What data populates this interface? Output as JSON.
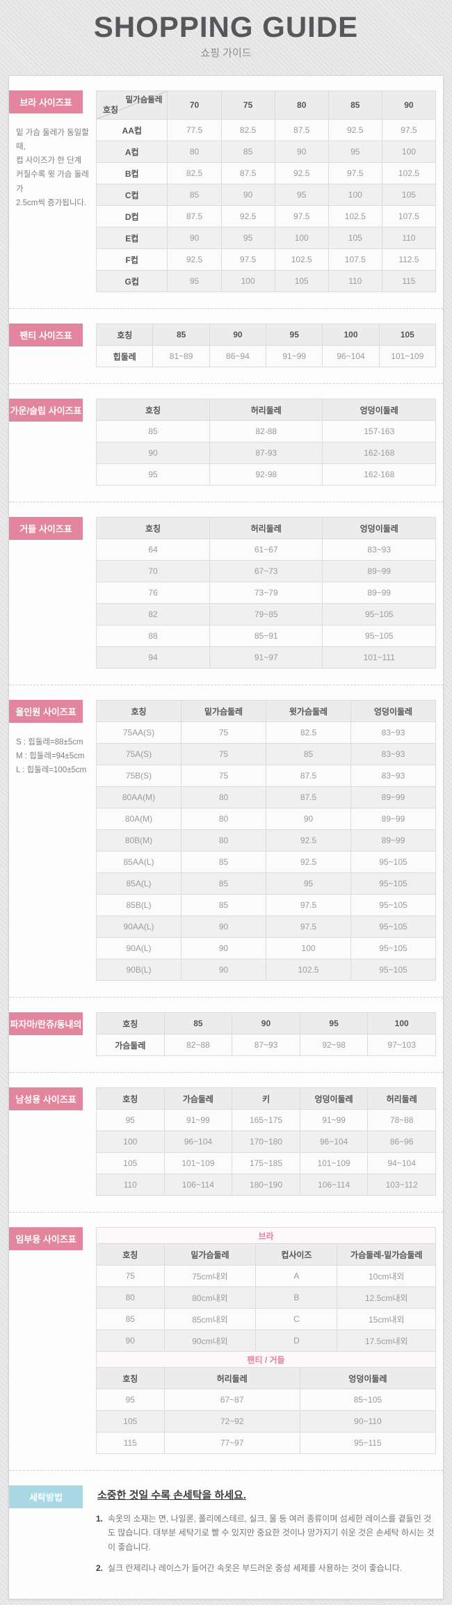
{
  "colors": {
    "accent_pink": "#e2859d",
    "accent_blue": "#a7d8e4",
    "banner_pink_text": "#e0849c"
  },
  "header": {
    "title": "SHOPPING GUIDE",
    "subtitle": "쇼핑 가이드"
  },
  "sections": {
    "bra": {
      "title": "브라 사이즈표",
      "note_lines": [
        "밑 가슴 둘레가 동일할 때,",
        "컵 사이즈가 한 단계",
        "커질수록 윗 가슴 둘레가",
        "2.5cm씩 증가됩니다."
      ],
      "table": {
        "corner": {
          "top": "밑가슴둘레",
          "bottom": "호칭"
        },
        "columns": [
          "70",
          "75",
          "80",
          "85",
          "90"
        ],
        "widths": [
          "21%",
          "15.8%",
          "15.8%",
          "15.8%",
          "15.8%",
          "15.8%"
        ],
        "label_col": true,
        "rows": [
          [
            "AA컵",
            "77.5",
            "82.5",
            "87.5",
            "92.5",
            "97.5"
          ],
          [
            "A컵",
            "80",
            "85",
            "90",
            "95",
            "100"
          ],
          [
            "B컵",
            "82.5",
            "87.5",
            "92.5",
            "97.5",
            "102.5"
          ],
          [
            "C컵",
            "85",
            "90",
            "95",
            "100",
            "105"
          ],
          [
            "D컵",
            "87.5",
            "92.5",
            "97.5",
            "102.5",
            "107.5"
          ],
          [
            "E컵",
            "90",
            "95",
            "100",
            "105",
            "110"
          ],
          [
            "F컵",
            "92.5",
            "97.5",
            "102.5",
            "107.5",
            "112.5"
          ],
          [
            "G컵",
            "95",
            "100",
            "105",
            "110",
            "115"
          ]
        ]
      }
    },
    "panty": {
      "title": "팬티 사이즈표",
      "table": {
        "columns": [
          "호칭",
          "85",
          "90",
          "95",
          "100",
          "105"
        ],
        "widths": [
          "16.7%",
          "16.66%",
          "16.66%",
          "16.66%",
          "16.66%",
          "16.66%"
        ],
        "label_col": true,
        "rows": [
          [
            "힙둘레",
            "81~89",
            "86~94",
            "91~99",
            "96~104",
            "101~109"
          ]
        ]
      }
    },
    "gown": {
      "title": "가운/슬립 사이즈표",
      "table": {
        "columns": [
          "호칭",
          "허리둘레",
          "엉덩이둘레"
        ],
        "widths": [
          "33.4%",
          "33.3%",
          "33.3%"
        ],
        "label_col": false,
        "rows": [
          [
            "85",
            "82-88",
            "157-163"
          ],
          [
            "90",
            "87-93",
            "162-168"
          ],
          [
            "95",
            "92-98",
            "162-168"
          ]
        ]
      }
    },
    "girdle": {
      "title": "거들 사이즈표",
      "table": {
        "columns": [
          "호칭",
          "허리둘레",
          "엉덩이둘레"
        ],
        "widths": [
          "33.4%",
          "33.3%",
          "33.3%"
        ],
        "label_col": false,
        "rows": [
          [
            "64",
            "61~67",
            "83~93"
          ],
          [
            "70",
            "67~73",
            "89~99"
          ],
          [
            "76",
            "73~79",
            "89~99"
          ],
          [
            "82",
            "79~85",
            "95~105"
          ],
          [
            "88",
            "85~91",
            "95~105"
          ],
          [
            "94",
            "91~97",
            "101~111"
          ]
        ]
      }
    },
    "allinone": {
      "title": "올인원 사이즈표",
      "note_lines": [
        "S : 힙둘레=88±5cm",
        "M : 힙둘레=94±5cm",
        "L : 힙둘레=100±5cm"
      ],
      "table": {
        "columns": [
          "호칭",
          "밑가슴둘레",
          "윗가슴둘레",
          "엉덩이둘레"
        ],
        "widths": [
          "25%",
          "25%",
          "25%",
          "25%"
        ],
        "label_col": false,
        "rows": [
          [
            "75AA(S)",
            "75",
            "82.5",
            "83~93"
          ],
          [
            "75A(S)",
            "75",
            "85",
            "83~93"
          ],
          [
            "75B(S)",
            "75",
            "87.5",
            "83~93"
          ],
          [
            "80AA(M)",
            "80",
            "87.5",
            "89~99"
          ],
          [
            "80A(M)",
            "80",
            "90",
            "89~99"
          ],
          [
            "80B(M)",
            "80",
            "92.5",
            "89~99"
          ],
          [
            "85AA(L)",
            "85",
            "92.5",
            "95~105"
          ],
          [
            "85A(L)",
            "85",
            "95",
            "95~105"
          ],
          [
            "85B(L)",
            "85",
            "97.5",
            "95~105"
          ],
          [
            "90AA(L)",
            "90",
            "97.5",
            "95~105"
          ],
          [
            "90A(L)",
            "90",
            "100",
            "95~105"
          ],
          [
            "90B(L)",
            "90",
            "102.5",
            "95~105"
          ]
        ]
      }
    },
    "pajama": {
      "title": "파자마/란쥬/동내의",
      "table": {
        "columns": [
          "호칭",
          "85",
          "90",
          "95",
          "100"
        ],
        "widths": [
          "20%",
          "20%",
          "20%",
          "20%",
          "20%"
        ],
        "label_col": true,
        "rows": [
          [
            "가슴둘레",
            "82~88",
            "87~93",
            "92~98",
            "97~103"
          ]
        ]
      }
    },
    "mens": {
      "title": "남성용 사이즈표",
      "table": {
        "columns": [
          "호칭",
          "가슴둘레",
          "키",
          "엉덩이둘레",
          "허리둘레"
        ],
        "widths": [
          "20%",
          "20%",
          "20%",
          "20%",
          "20%"
        ],
        "label_col": false,
        "rows": [
          [
            "95",
            "91~99",
            "165~175",
            "91~99",
            "78~88"
          ],
          [
            "100",
            "96~104",
            "170~180",
            "96~104",
            "86~96"
          ],
          [
            "105",
            "101~109",
            "175~185",
            "101~109",
            "94~104"
          ],
          [
            "110",
            "106~114",
            "180~190",
            "106~114",
            "103~112"
          ]
        ]
      }
    },
    "maternity": {
      "title": "임부용 사이즈표",
      "tables": [
        {
          "banner": "브라",
          "columns": [
            "호칭",
            "밑가슴둘레",
            "컵사이즈",
            "가슴둘레-밑가슴둘레"
          ],
          "widths": [
            "20%",
            "27%",
            "24%",
            "29%"
          ],
          "label_col": false,
          "rows": [
            [
              "75",
              "75cm내외",
              "A",
              "10cm내외"
            ],
            [
              "80",
              "80cm내외",
              "B",
              "12.5cm내외"
            ],
            [
              "85",
              "85cm내외",
              "C",
              "15cm내외"
            ],
            [
              "90",
              "90cm내외",
              "D",
              "17.5cm내외"
            ]
          ]
        },
        {
          "banner": "팬티 / 거들",
          "columns": [
            "호칭",
            "허리둘레",
            "엉덩이둘레"
          ],
          "widths": [
            "20%",
            "40%",
            "40%"
          ],
          "label_col": false,
          "rows": [
            [
              "95",
              "67~87",
              "85~105"
            ],
            [
              "105",
              "72~92",
              "90~110"
            ],
            [
              "115",
              "77~97",
              "95~115"
            ]
          ]
        }
      ]
    },
    "washing": {
      "title": "세탁방법",
      "heading": "소중한 것일 수록 손세탁을 하세요.",
      "items": [
        {
          "num": "1.",
          "text": "속옷의 소재는 면, 나일론, 폴리에스테르, 실크, 울 등 여러 종류이며 섬세한 레이스를 곁들인 것도 많습니다. 대부분 세탁기로 빨 수 있지만 중요한 것이나 망가지기 쉬운 것은 손세탁 하시는 것이 좋습니다."
        },
        {
          "num": "2.",
          "text": "실크 란제리나 레이스가 들어간 속옷은 부드러운 중성 세제를 사용하는 것이 좋습니다."
        }
      ]
    }
  }
}
